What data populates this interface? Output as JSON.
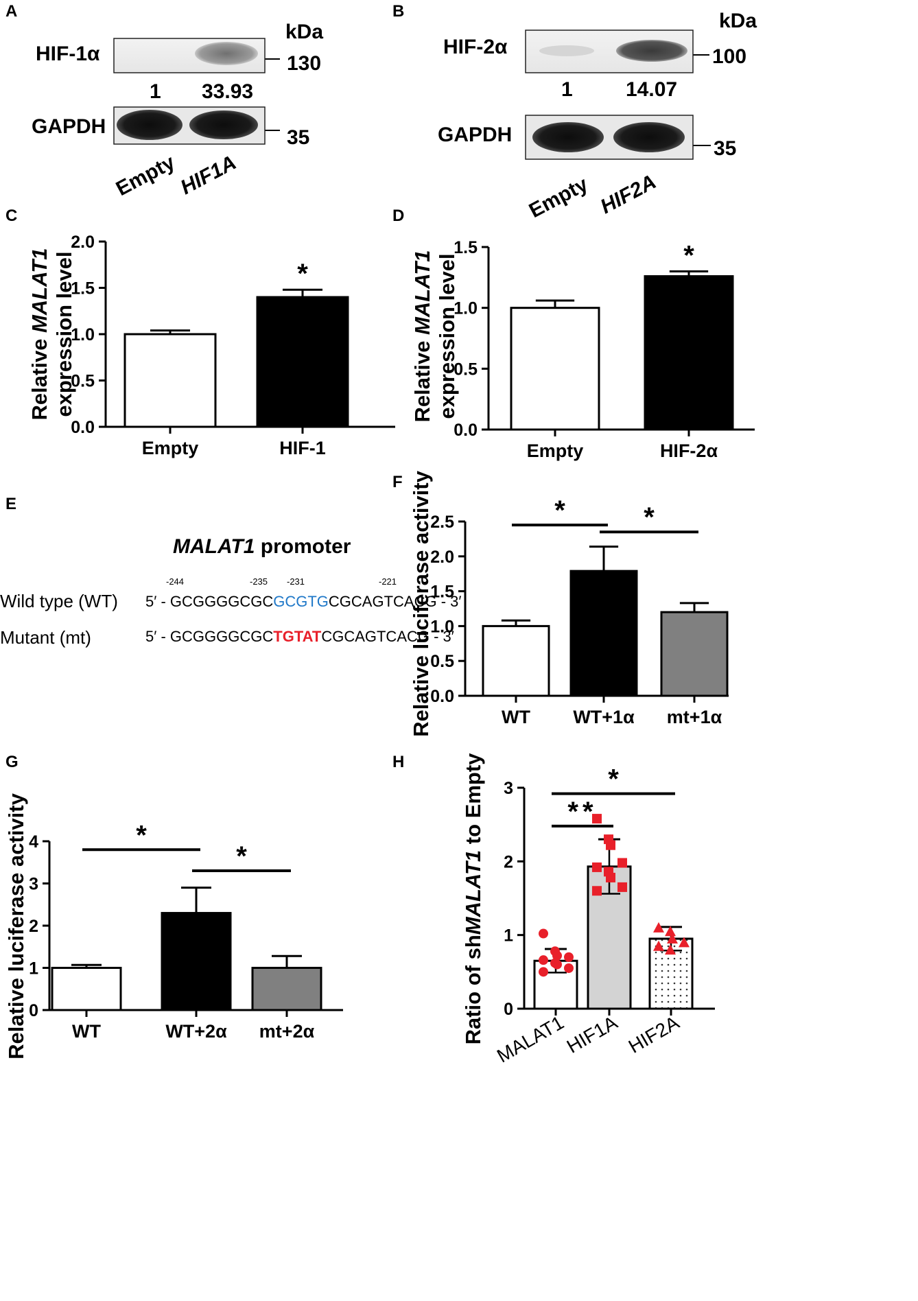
{
  "figure": {
    "panels": {
      "A": {
        "letter": "A",
        "band_labels": [
          "HIF-1α",
          "GAPDH"
        ],
        "kda_unit": "kDa",
        "markers": [
          "130",
          "35"
        ],
        "quantification": [
          "1",
          "33.93"
        ],
        "lanes": [
          "Empty",
          "HIF1A"
        ]
      },
      "B": {
        "letter": "B",
        "band_labels": [
          "HIF-2α",
          "GAPDH"
        ],
        "kda_unit": "kDa",
        "markers": [
          "100",
          "35"
        ],
        "quantification": [
          "1",
          "14.07"
        ],
        "lanes": [
          "Empty",
          "HIF2A"
        ]
      },
      "E": {
        "letter": "E",
        "title_gene": "MALAT1",
        "title_rest": " promoter",
        "positions": [
          "-244",
          "-235",
          "-231",
          "-221"
        ],
        "wt_label": "Wild type (WT)",
        "mt_label": "Mutant (mt)",
        "wt_prefix": "5′ - GCGGGGCGC",
        "wt_motif": "GCGTG",
        "wt_suffix": "CGCAGTCACG - 3′",
        "mt_prefix": "5′ - GCGGGGCGC",
        "mt_motif": "TGTAT",
        "mt_suffix": "CGCAGTCACG - 3′",
        "wt_motif_color": "#1f78c8",
        "mt_motif_color": "#e8202a"
      }
    }
  },
  "chart_data": [
    {
      "panel": "C",
      "type": "bar",
      "letter": "C",
      "categories": [
        "Empty",
        "HIF-1"
      ],
      "values": [
        1.0,
        1.4
      ],
      "errors": [
        0.04,
        0.08
      ],
      "bar_colors": [
        "#ffffff",
        "#000000"
      ],
      "ylabel_line1_pre": "Relative ",
      "ylabel_line1_gene": "MALAT1",
      "ylabel_line2": "expression level",
      "ylim": [
        0,
        2.0
      ],
      "yticks": [
        "0.0",
        "0.5",
        "1.0",
        "1.5",
        "2.0"
      ],
      "significance": [
        {
          "marker": "*",
          "over": 1
        }
      ]
    },
    {
      "panel": "D",
      "type": "bar",
      "letter": "D",
      "categories": [
        "Empty",
        "HIF-2α"
      ],
      "values": [
        1.0,
        1.26
      ],
      "errors": [
        0.06,
        0.04
      ],
      "bar_colors": [
        "#ffffff",
        "#000000"
      ],
      "ylabel_line1_pre": "Relative ",
      "ylabel_line1_gene": "MALAT1",
      "ylabel_line2": "expression level",
      "ylim": [
        0,
        1.5
      ],
      "yticks": [
        "0.0",
        "0.5",
        "1.0",
        "1.5"
      ],
      "significance": [
        {
          "marker": "*",
          "over": 1
        }
      ]
    },
    {
      "panel": "F",
      "type": "bar",
      "letter": "F",
      "categories": [
        "WT",
        "WT+1α",
        "mt+1α"
      ],
      "values": [
        1.0,
        1.79,
        1.2
      ],
      "errors": [
        0.08,
        0.35,
        0.13
      ],
      "bar_colors": [
        "#ffffff",
        "#000000",
        "#808080"
      ],
      "ylabel": "Relative luciferase activity",
      "ylim": [
        0,
        2.5
      ],
      "yticks": [
        "0.0",
        "0.5",
        "1.0",
        "1.5",
        "2.0",
        "2.5"
      ],
      "significance": [
        {
          "marker": "*",
          "from": 0,
          "to": 1,
          "y": 2.45
        },
        {
          "marker": "*",
          "from": 1,
          "to": 2,
          "y": 2.35
        }
      ]
    },
    {
      "panel": "G",
      "type": "bar",
      "letter": "G",
      "categories": [
        "WT",
        "WT+2α",
        "mt+2α"
      ],
      "values": [
        1.0,
        2.3,
        1.0
      ],
      "errors": [
        0.07,
        0.6,
        0.28
      ],
      "bar_colors": [
        "#ffffff",
        "#000000",
        "#808080"
      ],
      "ylabel": "Relative luciferase activity",
      "ylim": [
        0,
        4
      ],
      "yticks": [
        "0",
        "1",
        "2",
        "3",
        "4"
      ],
      "significance": [
        {
          "marker": "*",
          "from": 0,
          "to": 1,
          "y": 3.8
        },
        {
          "marker": "*",
          "from": 1,
          "to": 2,
          "y": 3.3
        }
      ]
    },
    {
      "panel": "H",
      "type": "bar",
      "letter": "H",
      "categories": [
        "MALAT1",
        "HIF1A",
        "HIF2A"
      ],
      "values": [
        0.65,
        1.93,
        0.95
      ],
      "errors": [
        0.16,
        0.37,
        0.16
      ],
      "bar_colors": [
        "#ffffff",
        "#d3d3d3",
        "#ffffff"
      ],
      "bar_patterns": [
        "none",
        "none",
        "dots"
      ],
      "point_color": "#e8202a",
      "point_shapes": [
        "circle",
        "square",
        "triangle"
      ],
      "points": [
        [
          1.02,
          0.78,
          0.72,
          0.7,
          0.66,
          0.62,
          0.6,
          0.55,
          0.5
        ],
        [
          2.58,
          2.3,
          2.22,
          1.98,
          1.92,
          1.86,
          1.78,
          1.65,
          1.6
        ],
        [
          1.1,
          1.05,
          0.95,
          0.9,
          0.85,
          0.8
        ]
      ],
      "ylabel_pre": "Ratio of sh",
      "ylabel_gene": "MALAT1",
      "ylabel_post": " to Empty",
      "ylim": [
        0,
        3
      ],
      "yticks": [
        "0",
        "1",
        "2",
        "3"
      ],
      "significance": [
        {
          "marker": "*",
          "from": 0,
          "to": 2,
          "y": 2.92
        },
        {
          "marker": "**",
          "from": 0,
          "to": 1,
          "y": 2.48
        }
      ]
    }
  ]
}
